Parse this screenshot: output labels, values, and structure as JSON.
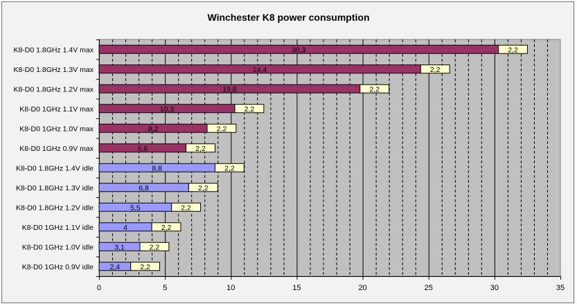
{
  "chart_data": {
    "type": "bar",
    "orientation": "horizontal",
    "stacked": true,
    "title": "Winchester K8 power consumption",
    "xlabel": "",
    "ylabel": "",
    "xlim": [
      0,
      35
    ],
    "x_ticks": [
      0,
      5,
      10,
      15,
      20,
      25,
      30,
      35
    ],
    "grid": true,
    "categories": [
      "K8-D0 1.8GHz 1.4V max",
      "K8-D0 1.8GHz 1.3V max",
      "K8-D0 1.8GHz 1.2V max",
      "K8-D0 1GHz 1.1V max",
      "K8-D0 1GHz 1.0V max",
      "K8-D0 1GHz 0.9V max",
      "K8-D0 1.8GHz 1.4V idle",
      "K8-D0 1.8GHz 1.3V idle",
      "K8-D0 1.8GHz 1.2V idle",
      "K8-D0 1GHz 1.1V idle",
      "K8-D0 1GHz 1.0V idle",
      "K8-D0 1GHz 0.9V idle"
    ],
    "series": [
      {
        "values": [
          30.3,
          24.4,
          19.8,
          10.3,
          8.2,
          6.6,
          8.8,
          6.8,
          5.5,
          4,
          3.1,
          2.4
        ],
        "labels": [
          "30,3",
          "24,4",
          "19,8",
          "10,3",
          "8,2",
          "6,6",
          "8,8",
          "6,8",
          "5,5",
          "4",
          "3,1",
          "2,4"
        ],
        "colors": [
          "#993366",
          "#993366",
          "#993366",
          "#993366",
          "#993366",
          "#993366",
          "#9999ff",
          "#9999ff",
          "#9999ff",
          "#9999ff",
          "#9999ff",
          "#9999ff"
        ]
      },
      {
        "values": [
          2.2,
          2.2,
          2.2,
          2.2,
          2.2,
          2.2,
          2.2,
          2.2,
          2.2,
          2.2,
          2.2,
          2.2
        ],
        "labels": [
          "2,2",
          "2,2",
          "2,2",
          "2,2",
          "2,2",
          "2,2",
          "2,2",
          "2,2",
          "2,2",
          "2,2",
          "2,2",
          "2,2"
        ],
        "colors": [
          "#ffffcc",
          "#ffffcc",
          "#ffffcc",
          "#ffffcc",
          "#ffffcc",
          "#ffffcc",
          "#ffffcc",
          "#ffffcc",
          "#ffffcc",
          "#ffffcc",
          "#ffffcc",
          "#ffffcc"
        ]
      }
    ],
    "plot_background": "#c0c0c0"
  }
}
